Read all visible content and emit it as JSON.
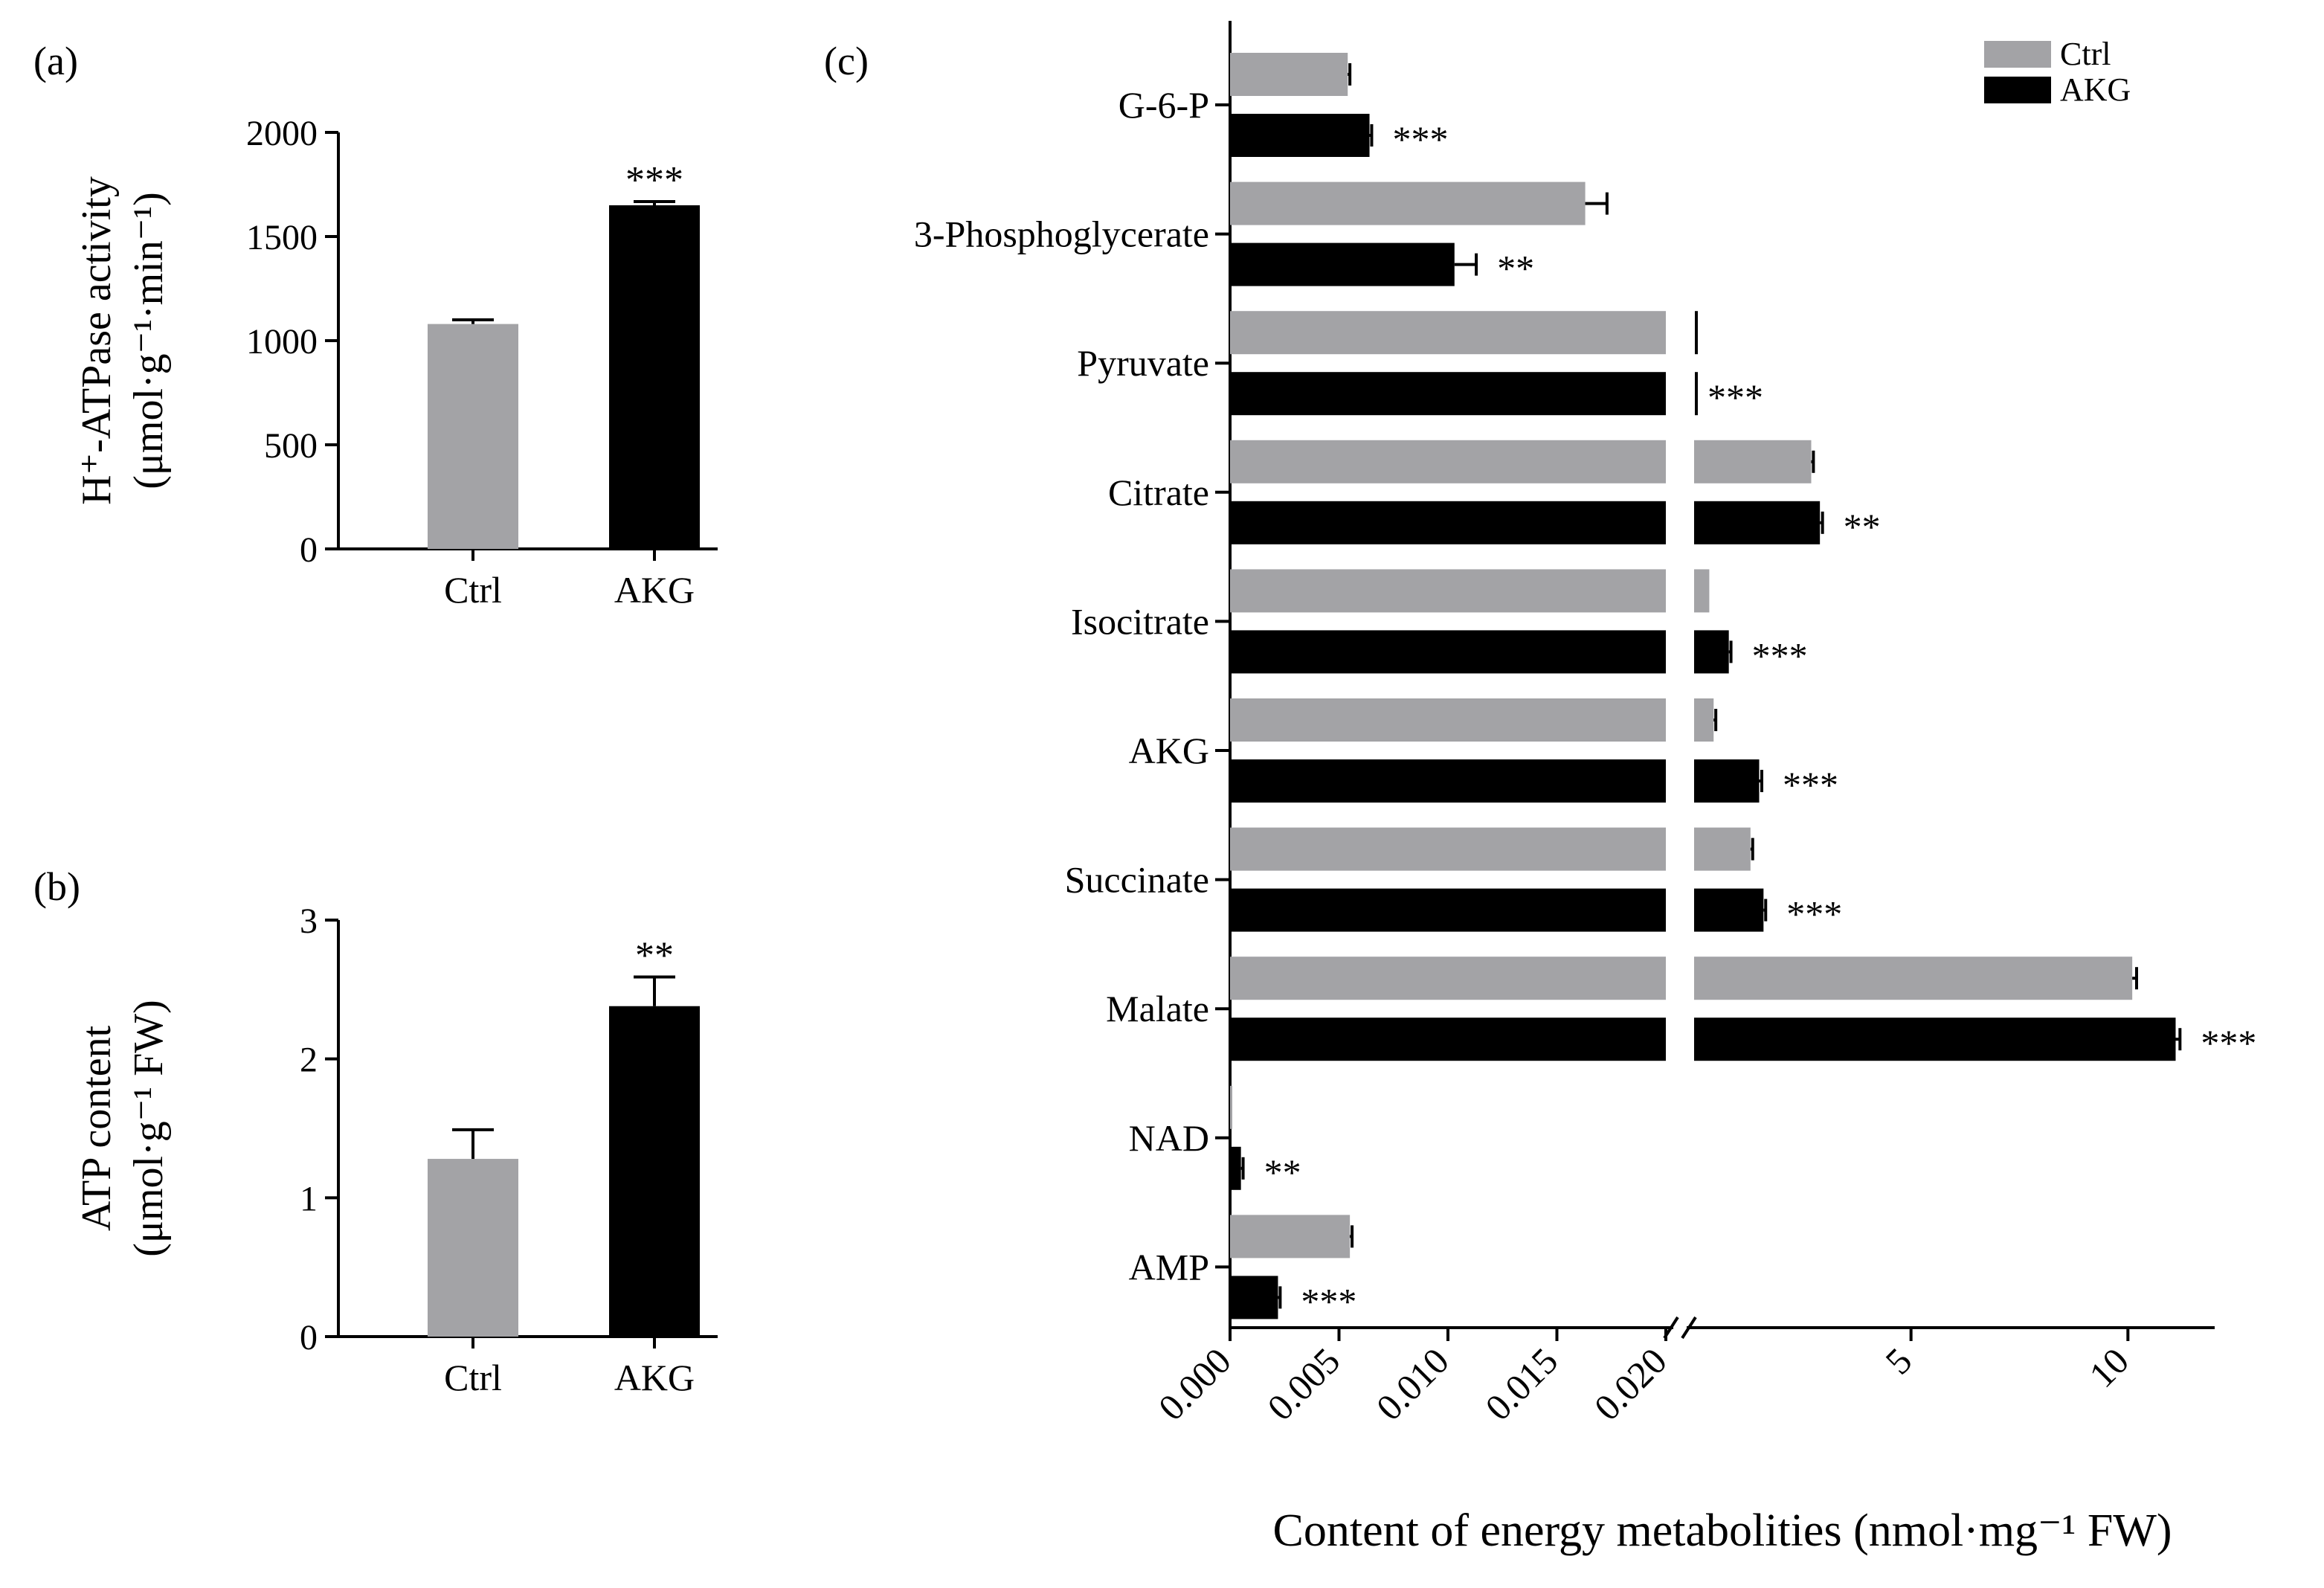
{
  "colors": {
    "ctrl": "#a3a3a6",
    "akg": "#000000",
    "axis": "#000000"
  },
  "panel_labels": {
    "a": "(a)",
    "b": "(b)",
    "c": "(c)"
  },
  "chart_data": [
    {
      "id": "a",
      "type": "bar",
      "ylabel_line1": "H⁺-ATPase activity",
      "ylabel_line2": "(μmol·g⁻¹·min⁻¹)",
      "ylim": [
        0,
        2000
      ],
      "yticks": [
        0,
        500,
        1000,
        1500,
        2000
      ],
      "categories": [
        "Ctrl",
        "AKG"
      ],
      "values": [
        1080,
        1650
      ],
      "errors": [
        20,
        18
      ],
      "significance": [
        "",
        "***"
      ]
    },
    {
      "id": "b",
      "type": "bar",
      "ylabel_line1": "ATP content",
      "ylabel_line2": "(μmol·g⁻¹ FW)",
      "ylim": [
        0,
        3
      ],
      "yticks": [
        0,
        1,
        2,
        3
      ],
      "categories": [
        "Ctrl",
        "AKG"
      ],
      "values": [
        1.28,
        2.38
      ],
      "errors": [
        0.21,
        0.21
      ],
      "significance": [
        "",
        "**"
      ]
    },
    {
      "id": "c",
      "type": "bar",
      "orientation": "horizontal",
      "xlabel": "Content of energy metabolities (nmol·mg⁻¹ FW)",
      "x_segments": [
        {
          "range": [
            0,
            0.02
          ],
          "ticks": [
            "0.000",
            "0.005",
            "0.010",
            "0.015",
            "0.020"
          ]
        },
        {
          "range": [
            0,
            12
          ],
          "ticks": [
            "5",
            "10"
          ]
        }
      ],
      "legend": [
        "Ctrl",
        "AKG"
      ],
      "legend_position": "top-right",
      "categories": [
        "G-6-P",
        "3-Phosphoglycerate",
        "Pyruvate",
        "Citrate",
        "Isocitrate",
        "AKG",
        "Succinate",
        "Malate",
        "NAD",
        "AMP"
      ],
      "series": [
        {
          "name": "Ctrl",
          "values": [
            0.0054,
            0.0163,
            0.02,
            2.7,
            0.35,
            0.45,
            1.3,
            10.1,
            0.0001,
            0.0055
          ],
          "errors": [
            0.0001,
            0.001,
            0,
            0.05,
            0,
            0.05,
            0.05,
            0.1,
            0,
            0.0001
          ]
        },
        {
          "name": "AKG",
          "values": [
            0.0064,
            0.0103,
            0.02,
            2.9,
            0.8,
            1.5,
            1.6,
            11.1,
            0.0005,
            0.0022
          ],
          "errors": [
            0.0001,
            0.001,
            0,
            0.06,
            0.05,
            0.06,
            0.05,
            0.1,
            0.0001,
            0.0001
          ],
          "significance": [
            "***",
            "**",
            "***",
            "**",
            "***",
            "***",
            "***",
            "***",
            "**",
            "***"
          ]
        }
      ]
    }
  ]
}
